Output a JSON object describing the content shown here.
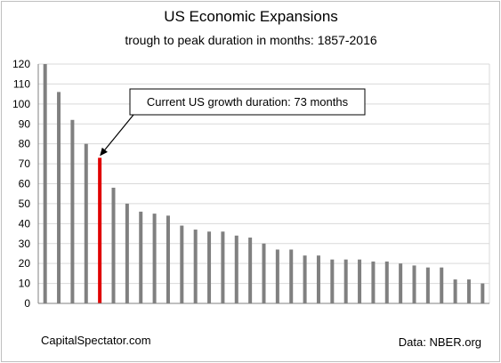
{
  "chart_data": {
    "type": "bar",
    "title": "US Economic Expansions",
    "subtitle": "trough to peak duration in months: 1857-2016",
    "xlabel": "",
    "ylabel": "",
    "ylim": [
      0,
      120
    ],
    "yticks": [
      "0",
      "10",
      "20",
      "30",
      "40",
      "50",
      "60",
      "70",
      "80",
      "90",
      "100",
      "110",
      "120"
    ],
    "grid": true,
    "values": [
      120,
      106,
      92,
      80,
      73,
      58,
      50,
      46,
      45,
      44,
      39,
      37,
      36,
      36,
      34,
      33,
      30,
      27,
      27,
      24,
      24,
      22,
      22,
      22,
      21,
      21,
      20,
      19,
      18,
      18,
      12,
      12,
      10
    ],
    "highlight_index": 4,
    "colors": {
      "bar": "#808080",
      "highlight": "#e00000",
      "grid": "#d9d9d9",
      "axis": "#808080"
    },
    "annotation": {
      "text": "Current US growth duration: 73 months",
      "target_index": 4
    },
    "source": "Data: NBER.org",
    "credit": "CapitalSpectator.com"
  }
}
